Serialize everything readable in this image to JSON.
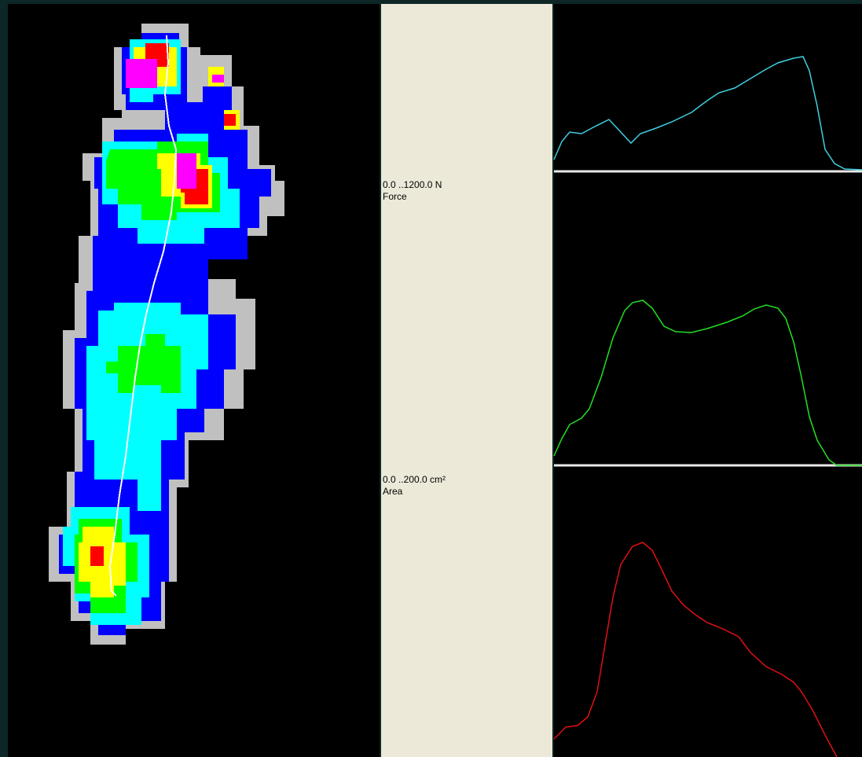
{
  "panels": {
    "force": {
      "range": "0.0 ..1200.0 N",
      "label": "Force"
    },
    "area": {
      "range": "0.0 ..200.0 cm²",
      "label": "Area"
    }
  }
}
